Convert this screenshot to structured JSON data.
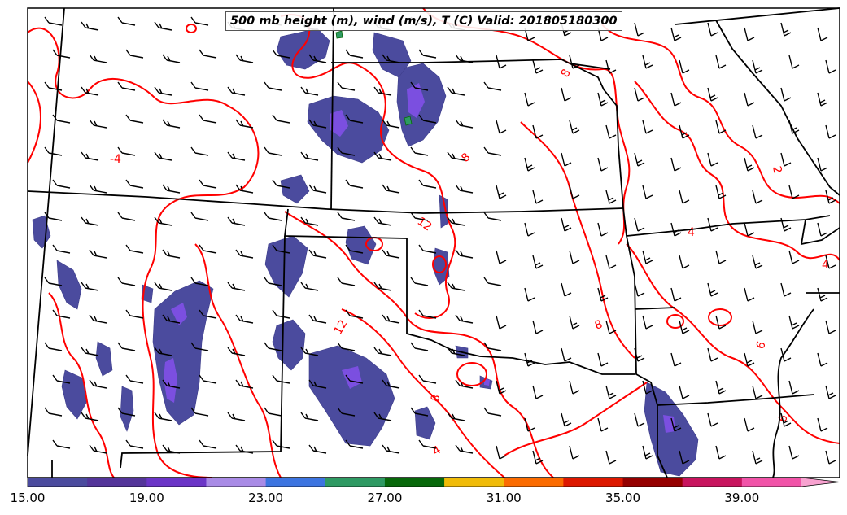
{
  "title": "500 mb height (m), wind (m/s), T (C) Valid: 201805180300",
  "contour_labels": [
    "8",
    "12",
    "8",
    "4",
    "12",
    "8",
    "8",
    "4",
    "2",
    "4",
    "6",
    "6",
    "-4"
  ],
  "colorbar": {
    "tick_labels": [
      "15.00",
      "19.00",
      "23.00",
      "27.00",
      "31.00",
      "35.00",
      "39.00"
    ],
    "colors": [
      "#4b4b9e",
      "#54359a",
      "#6b35c7",
      "#a98be6",
      "#3c74e0",
      "#2e9a63",
      "#07680a",
      "#f0bb07",
      "#fb6b00",
      "#dd1800",
      "#950000",
      "#c8145e",
      "#f153a8",
      "#f8a2d0"
    ]
  },
  "colors": {
    "temperature_contour": "#ff0000",
    "boundaries": "#000000",
    "precip_fill": "#4b4b9e",
    "precip_core": "#7b4fe0"
  }
}
